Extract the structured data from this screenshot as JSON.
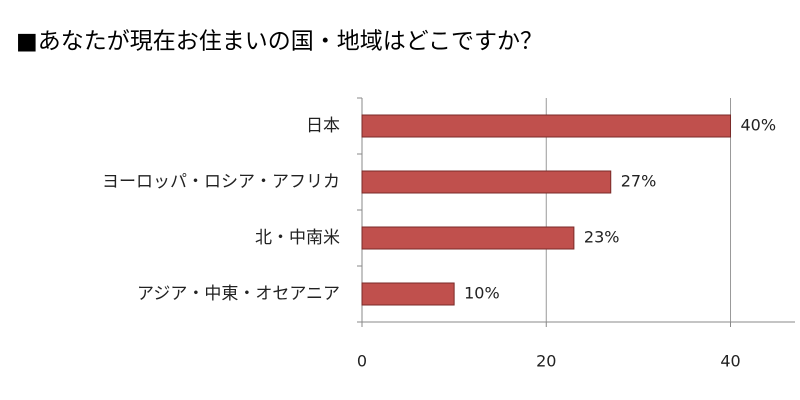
{
  "chart_data": {
    "type": "bar",
    "orientation": "horizontal",
    "title": "■あなたが現在お住まいの国・地域はどこですか？",
    "categories": [
      "日本",
      "ヨーロッパ・ロシア・アフリカ",
      "北・中南米",
      "アジア・中東・オセアニア"
    ],
    "values": [
      40,
      27,
      23,
      10
    ],
    "value_labels": [
      "40%",
      "27%",
      "23%",
      "10%"
    ],
    "color": "#c0504d",
    "xlim": [
      0,
      47
    ],
    "xticks": [
      0,
      20,
      40
    ],
    "grid": true
  }
}
